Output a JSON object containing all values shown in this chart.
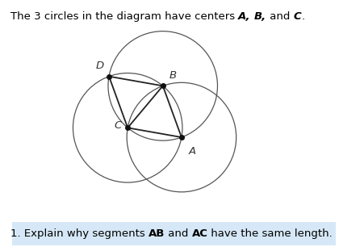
{
  "title_regular": "The 3 circles in the diagram have centers ",
  "title_A": "A,",
  "title_B": " B,",
  "title_and": " and ",
  "title_C": "C",
  "title_end": ".",
  "question_pre": "1. Explain why segments ",
  "question_AB": "AB",
  "question_mid": " and ",
  "question_AC": "AC",
  "question_post": " have the same length.",
  "highlight_color": "#d6e8f7",
  "bg_color": "#ffffff",
  "text_color": "#000000",
  "circle_color": "#555555",
  "line_color": "#222222",
  "dot_color": "#111111",
  "fontsize_title": 9.5,
  "fontsize_label": 9.5,
  "fontsize_question": 9.5
}
